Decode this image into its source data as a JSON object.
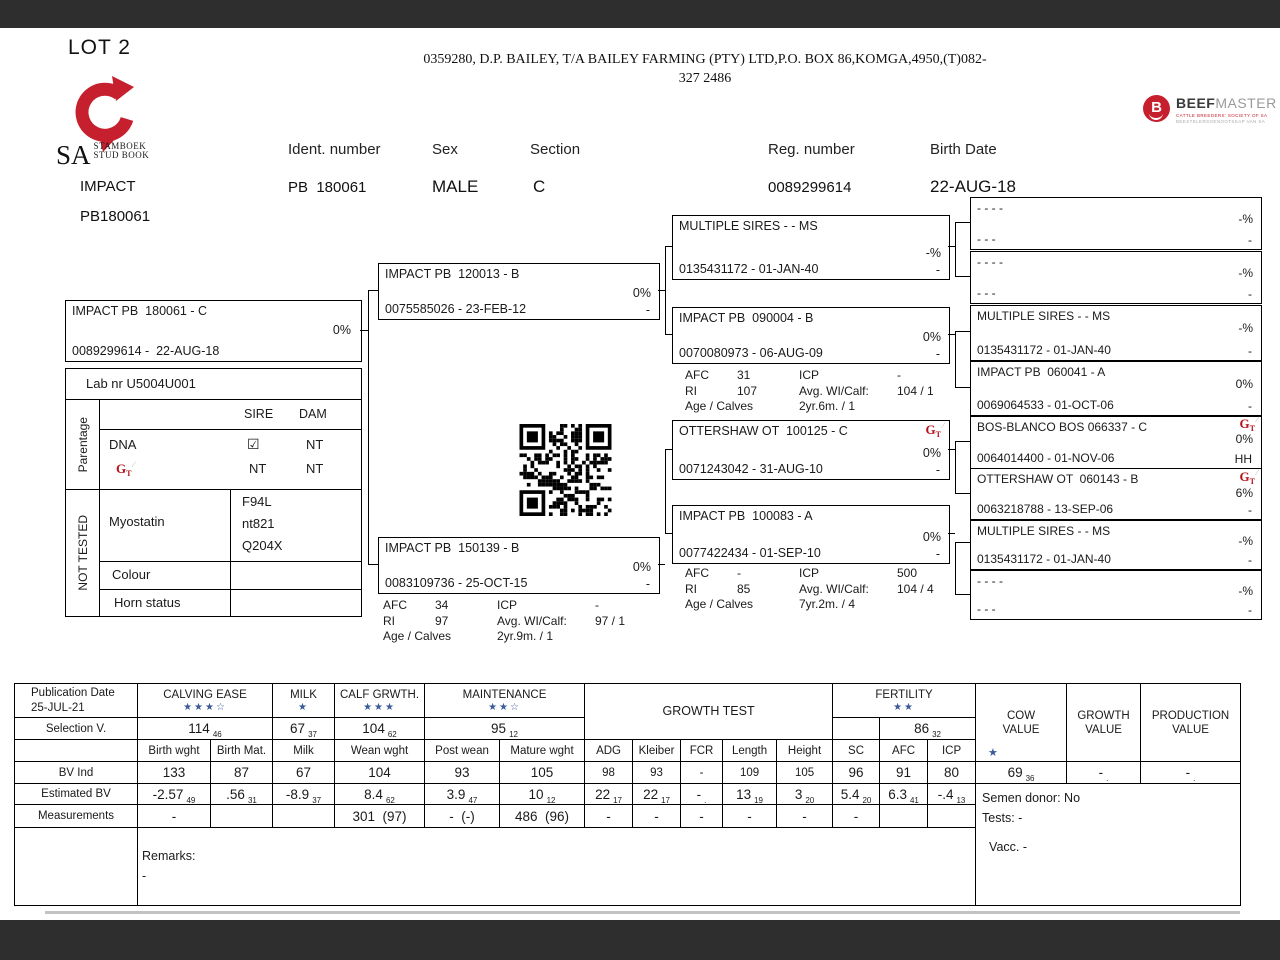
{
  "header": {
    "lot": "LOT 2",
    "address1": "0359280, D.P. BAILEY, T/A BAILEY FARMING (PTY) LTD,P.O. BOX 86,KOMGA,4950,(T)082-",
    "address2": "327 2486"
  },
  "branding": {
    "sa": "SA",
    "sa1": "STAMBOEK",
    "sa2": "STUD BOOK",
    "bm_b": "B",
    "bm1": "BEEF",
    "bm2": "MASTER",
    "bm_sub1": "CATTLE BREEDERS' SOCIETY OF SA",
    "bm_sub2": "BEESTELERSGENOOTSKAP VAN SA",
    "logo_red": "#c6202e"
  },
  "identity": {
    "name": "IMPACT",
    "name_id": "PB180061",
    "ident_label": "Ident. number",
    "ident_value": "PB  180061",
    "sex_label": "Sex",
    "sex_value": "MALE",
    "section_label": "Section",
    "section_value": "C",
    "reg_label": "Reg. number",
    "reg_value": "0089299614",
    "birth_label": "Birth Date",
    "birth_value": "22-AUG-18"
  },
  "pedigree": {
    "gt_g": "G",
    "gt_t": "T",
    "subject": {
      "name": "IMPACT PB  180061 - C",
      "pct": "0%",
      "id": "0089299614 -  22-AUG-18"
    },
    "g1a": {
      "name": "IMPACT PB  120013 - B",
      "pct": "0%",
      "dash": "-",
      "id": "0075585026 - 23-FEB-12"
    },
    "g1b": {
      "name": "IMPACT PB  150139 - B",
      "pct": "0%",
      "dash": "-",
      "id": "0083109736 - 25-OCT-15"
    },
    "g1b_stats": {
      "l1": "AFC",
      "v1": "34",
      "l2": "ICP",
      "v2": "-",
      "l3": "RI",
      "v3": "97",
      "l4": "Avg. WI/Calf:",
      "v4": "97 / 1",
      "l5": "Age / Calves",
      "v5": "2yr.9m. / 1"
    },
    "g2a": {
      "name": "MULTIPLE SIRES - - MS",
      "pct": "-%",
      "dash": "-",
      "id": "0135431172 - 01-JAN-40"
    },
    "g2b": {
      "name": "IMPACT PB  090004 - B",
      "pct": "0%",
      "dash": "-",
      "id": "0070080973 - 06-AUG-09"
    },
    "g2b_stats": {
      "l1": "AFC",
      "v1": "31",
      "l2": "ICP",
      "v2": "-",
      "l3": "RI",
      "v3": "107",
      "l4": "Avg. WI/Calf:",
      "v4": "104 / 1",
      "l5": "Age / Calves",
      "v5": "2yr.6m. / 1"
    },
    "g2c": {
      "name": "OTTERSHAW OT  100125 - C",
      "pct": "0%",
      "dash": "-",
      "id": "0071243042 - 31-AUG-10"
    },
    "g2d": {
      "name": "IMPACT PB  100083 - A",
      "pct": "0%",
      "dash": "-",
      "id": "0077422434 - 01-SEP-10"
    },
    "g2d_stats": {
      "l1": "AFC",
      "v1": "-",
      "l2": "ICP",
      "v2": "500",
      "l3": "RI",
      "v3": "85",
      "l4": "Avg. WI/Calf:",
      "v4": "104 / 4",
      "l5": "Age / Calves",
      "v5": "7yr.2m. / 4"
    },
    "g3": [
      {
        "name": "- - - -",
        "pct": "-%",
        "dash": "-",
        "id": "- - -"
      },
      {
        "name": "- - - -",
        "pct": "-%",
        "dash": "-",
        "id": "- - -"
      },
      {
        "name": "MULTIPLE SIRES - - MS",
        "pct": "-%",
        "dash": "-",
        "id": "0135431172 - 01-JAN-40"
      },
      {
        "name": "IMPACT PB  060041 - A",
        "pct": "0%",
        "dash": "-",
        "id": "0069064533 - 01-OCT-06"
      },
      {
        "name": "BOS-BLANCO BOS 066337 - C",
        "pct": "0%",
        "dash": "HH",
        "id": "0064014400 - 01-NOV-06"
      },
      {
        "name": "OTTERSHAW OT  060143 - B",
        "pct": "6%",
        "dash": "-",
        "id": "0063218788 - 13-SEP-06"
      },
      {
        "name": "MULTIPLE SIRES - - MS",
        "pct": "-%",
        "dash": "-",
        "id": "0135431172 - 01-JAN-40"
      },
      {
        "name": "- - - -",
        "pct": "-%",
        "dash": "-",
        "id": "- - -"
      }
    ]
  },
  "lab": {
    "labnr": "Lab nr  U5004U001",
    "parentage": "Parentage",
    "sire": "SIRE",
    "dam": "DAM",
    "dna": "DNA",
    "dna_sire": "☑",
    "dna_dam": "NT",
    "gt_sire": "NT",
    "gt_dam": "NT",
    "not_tested": "NOT TESTED",
    "myostatin": "Myostatin",
    "myo": [
      "F94L",
      "nt821",
      "Q204X"
    ],
    "colour": "Colour",
    "horn": "Horn status"
  },
  "bvtable": {
    "pub_label": "Publication Date",
    "pub_date": "25-JUL-21",
    "selection_label": "Selection V.",
    "bvind_label": "BV Ind",
    "estbv_label": "Estimated BV",
    "meas_label": "Measurements",
    "calving": {
      "label": "CALVING EASE",
      "stars": "★★★☆"
    },
    "milk": {
      "label": "MILK",
      "stars": "★"
    },
    "calf": {
      "label": "CALF GRWTH.",
      "stars": "★★★"
    },
    "maint": {
      "label": "MAINTENANCE",
      "stars": "★★☆"
    },
    "growth_test": "GROWTH TEST",
    "fertility": {
      "label": "FERTILITY",
      "stars": "★★"
    },
    "cow": {
      "l1": "COW",
      "l2": "VALUE",
      "stars": "★"
    },
    "growth": {
      "l1": "GROWTH",
      "l2": "VALUE"
    },
    "production": {
      "l1": "PRODUCTION",
      "l2": "VALUE"
    },
    "sel": {
      "calving": {
        "v": "114",
        "s": "46"
      },
      "milk": {
        "v": "67",
        "s": "37"
      },
      "calf": {
        "v": "104",
        "s": "62"
      },
      "maint": {
        "v": "95",
        "s": "12"
      },
      "fert": {
        "v": "86",
        "s": "32"
      }
    },
    "cols": [
      "Birth wght",
      "Birth Mat.",
      "Milk",
      "Wean wght",
      "Post wean",
      "Mature wght",
      "ADG",
      "Kleiber",
      "FCR",
      "Length",
      "Height",
      "SC",
      "AFC",
      "ICP"
    ],
    "bvind": [
      "133",
      "87",
      "67",
      "104",
      "93",
      "105",
      "98",
      "93",
      "-",
      "109",
      "105",
      "96",
      "91",
      "80"
    ],
    "bvind_cow": {
      "v": "69",
      "s": "36"
    },
    "bvind_growth": {
      "v": "-",
      "s": "."
    },
    "bvind_prod": {
      "v": "-",
      "s": "."
    },
    "est": [
      {
        "v": "-2.57",
        "s": "49"
      },
      {
        "v": ".56",
        "s": "31"
      },
      {
        "v": "-8.9",
        "s": "37"
      },
      {
        "v": "8.4",
        "s": "62"
      },
      {
        "v": "3.9",
        "s": "47"
      },
      {
        "v": "10",
        "s": "12"
      },
      {
        "v": "22",
        "s": "17"
      },
      {
        "v": "22",
        "s": "17"
      },
      {
        "v": "-",
        "s": "."
      },
      {
        "v": "13",
        "s": "19"
      },
      {
        "v": "3",
        "s": "20"
      },
      {
        "v": "5.4",
        "s": "20"
      },
      {
        "v": "6.3",
        "s": "41"
      },
      {
        "v": "-.4",
        "s": "13"
      }
    ],
    "meas": [
      "-",
      "",
      "",
      "301  (97)",
      "-  (-)",
      "486  (96)",
      "-",
      "-",
      "-",
      "-",
      "-",
      "-",
      "",
      ""
    ],
    "remarks_label": "Remarks:",
    "remarks_value": "-",
    "semen": "Semen donor: No",
    "tests": "Tests: -",
    "vacc": "Vacc. -"
  }
}
